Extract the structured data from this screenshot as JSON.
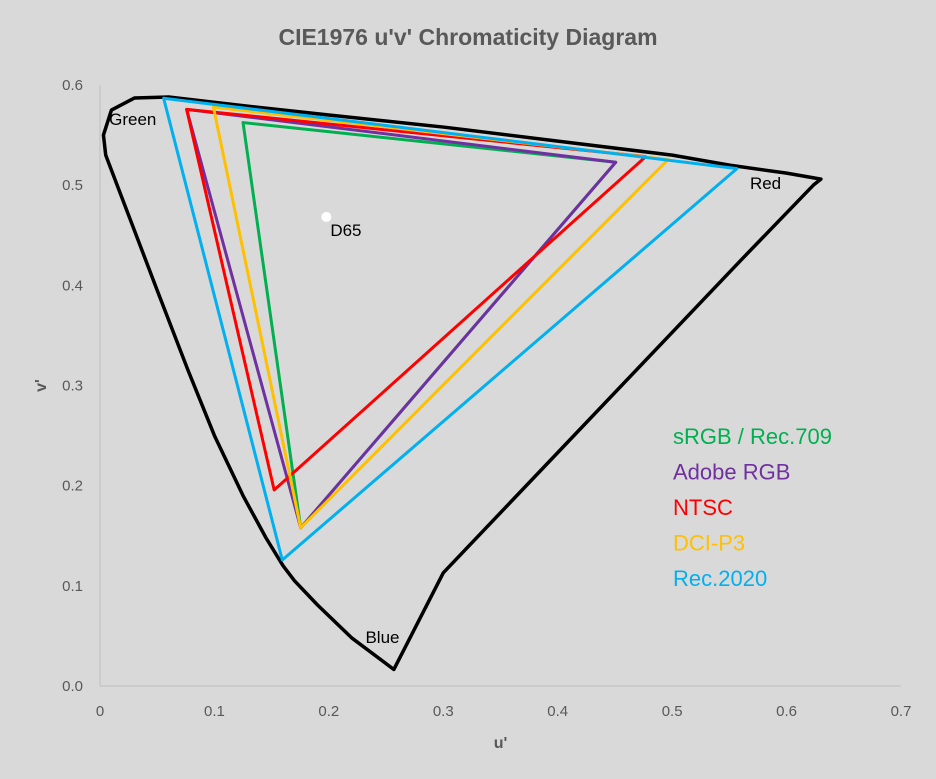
{
  "chart_data": {
    "type": "scatter",
    "title": "CIE1976 u'v' Chromaticity Diagram",
    "xlabel": "u'",
    "ylabel": "v'",
    "xlim": [
      0,
      0.7
    ],
    "ylim": [
      0,
      0.6
    ],
    "x_ticks": [
      "0",
      "0.1",
      "0.2",
      "0.3",
      "0.4",
      "0.5",
      "0.6",
      "0.7"
    ],
    "y_ticks": [
      "0.0",
      "0.1",
      "0.2",
      "0.3",
      "0.4",
      "0.5",
      "0.6"
    ],
    "grid": false,
    "legend_position": "right",
    "locus": {
      "color": "#000000",
      "points": [
        [
          0.2568,
          0.0165
        ],
        [
          0.22,
          0.048
        ],
        [
          0.19,
          0.081
        ],
        [
          0.17,
          0.105
        ],
        [
          0.16,
          0.12
        ],
        [
          0.145,
          0.148
        ],
        [
          0.125,
          0.19
        ],
        [
          0.1,
          0.25
        ],
        [
          0.077,
          0.315
        ],
        [
          0.05,
          0.395
        ],
        [
          0.025,
          0.47
        ],
        [
          0.005,
          0.53
        ],
        [
          0.003,
          0.55
        ],
        [
          0.01,
          0.575
        ],
        [
          0.03,
          0.587
        ],
        [
          0.06,
          0.588
        ],
        [
          0.12,
          0.58
        ],
        [
          0.2,
          0.57
        ],
        [
          0.3,
          0.558
        ],
        [
          0.4,
          0.544
        ],
        [
          0.5,
          0.53
        ],
        [
          0.55,
          0.52
        ],
        [
          0.6,
          0.512
        ],
        [
          0.63,
          0.506
        ],
        [
          0.6234,
          0.5
        ],
        [
          0.56,
          0.425
        ],
        [
          0.5,
          0.353
        ],
        [
          0.4,
          0.233
        ],
        [
          0.3,
          0.113
        ],
        [
          0.2568,
          0.0165
        ]
      ]
    },
    "series": [
      {
        "name": "sRGB / Rec.709",
        "color": "#00b050",
        "points": [
          [
            0.4507,
            0.5229
          ],
          [
            0.125,
            0.5625
          ],
          [
            0.1754,
            0.1579
          ]
        ]
      },
      {
        "name": "Adobe RGB",
        "color": "#7030a0",
        "points": [
          [
            0.4507,
            0.5229
          ],
          [
            0.0757,
            0.5757
          ],
          [
            0.1754,
            0.1579
          ]
        ]
      },
      {
        "name": "NTSC",
        "color": "#ff0000",
        "points": [
          [
            0.4769,
            0.5285
          ],
          [
            0.0757,
            0.5757
          ],
          [
            0.1522,
            0.1957
          ]
        ]
      },
      {
        "name": "DCI-P3",
        "color": "#ffc000",
        "points": [
          [
            0.4964,
            0.5255
          ],
          [
            0.0991,
            0.578
          ],
          [
            0.1754,
            0.1579
          ]
        ]
      },
      {
        "name": "Rec.2020",
        "color": "#00b0f0",
        "points": [
          [
            0.5566,
            0.5165
          ],
          [
            0.0556,
            0.5868
          ],
          [
            0.1593,
            0.1258
          ]
        ]
      }
    ],
    "white_point": {
      "label": "D65",
      "u": 0.1978,
      "v": 0.4683,
      "color": "#ffffff"
    },
    "annotations": [
      {
        "text": "Green",
        "u": 0.008,
        "v": 0.56
      },
      {
        "text": "Red",
        "u": 0.568,
        "v": 0.496
      },
      {
        "text": "Blue",
        "u": 0.232,
        "v": 0.043
      }
    ]
  }
}
